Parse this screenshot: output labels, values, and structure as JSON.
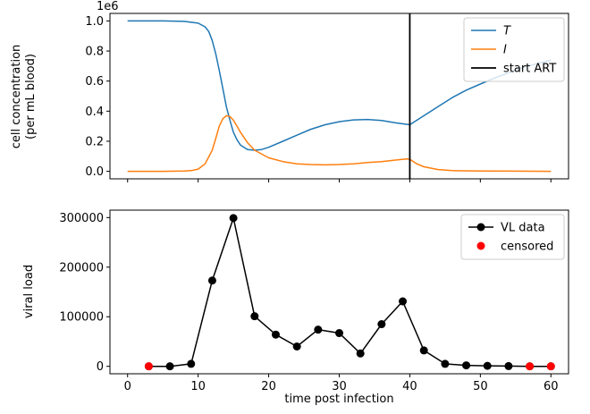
{
  "chart_data": [
    {
      "type": "line",
      "ylabel_lines": [
        "cell concentration",
        "(per mL blood)"
      ],
      "xlabel": "",
      "offset_text": "1e6",
      "xlim": [
        -2.5,
        62.5
      ],
      "ylim": [
        -0.05,
        1.05
      ],
      "x_ticks": [
        0,
        10,
        20,
        30,
        40,
        50,
        60
      ],
      "x_tick_labels_visible": false,
      "y_ticks": [
        0.0,
        0.2,
        0.4,
        0.6,
        0.8,
        1.0
      ],
      "y_tick_labels": [
        "0.0",
        "0.2",
        "0.4",
        "0.6",
        "0.8",
        "1.0"
      ],
      "legend_position": "top-right",
      "series": [
        {
          "name": "T",
          "color": "#1f77b4",
          "x": [
            0,
            5,
            8,
            10,
            11,
            11.5,
            12,
            12.5,
            13,
            13.5,
            14,
            14.5,
            15,
            15.5,
            16,
            17,
            18,
            19,
            20,
            22,
            24,
            26,
            28,
            30,
            32,
            34,
            36,
            38,
            40,
            42,
            44,
            46,
            48,
            50,
            52,
            54,
            56,
            58,
            60
          ],
          "y": [
            1.0,
            1.0,
            0.997,
            0.985,
            0.96,
            0.93,
            0.87,
            0.78,
            0.67,
            0.55,
            0.43,
            0.34,
            0.26,
            0.21,
            0.175,
            0.145,
            0.14,
            0.145,
            0.16,
            0.2,
            0.24,
            0.28,
            0.31,
            0.33,
            0.342,
            0.345,
            0.338,
            0.322,
            0.31,
            0.37,
            0.43,
            0.49,
            0.54,
            0.58,
            0.62,
            0.655,
            0.69,
            0.715,
            0.74
          ]
        },
        {
          "name": "I",
          "color": "#ff7f0e",
          "x": [
            0,
            5,
            8,
            9,
            10,
            11,
            12,
            12.5,
            13,
            13.5,
            14,
            14.5,
            15,
            15.5,
            16,
            17,
            18,
            20,
            22,
            24,
            26,
            28,
            30,
            32,
            34,
            36,
            38,
            39.5,
            40,
            41,
            42,
            44,
            46,
            50,
            55,
            60
          ],
          "y": [
            0.0,
            0.0,
            0.002,
            0.005,
            0.015,
            0.05,
            0.14,
            0.22,
            0.3,
            0.35,
            0.37,
            0.365,
            0.34,
            0.3,
            0.26,
            0.19,
            0.14,
            0.09,
            0.065,
            0.05,
            0.045,
            0.043,
            0.045,
            0.05,
            0.058,
            0.065,
            0.075,
            0.082,
            0.08,
            0.05,
            0.03,
            0.012,
            0.005,
            0.002,
            0.001,
            0.0
          ]
        }
      ],
      "vline": {
        "x": 40,
        "name": "start ART",
        "color": "#000000"
      }
    },
    {
      "type": "line",
      "xlabel": "time post infection",
      "ylabel": "viral load",
      "xlim": [
        -2.5,
        62.5
      ],
      "ylim": [
        -15000,
        315000
      ],
      "x_ticks": [
        0,
        10,
        20,
        30,
        40,
        50,
        60
      ],
      "x_tick_labels": [
        "0",
        "10",
        "20",
        "30",
        "40",
        "50",
        "60"
      ],
      "y_ticks": [
        0,
        100000,
        200000,
        300000
      ],
      "y_tick_labels": [
        "0",
        "100000",
        "200000",
        "300000"
      ],
      "legend_position": "top-right",
      "series": [
        {
          "name": "VL data",
          "color": "#000000",
          "marker": "circle",
          "x": [
            3,
            6,
            9,
            12,
            15,
            18,
            21,
            24,
            27,
            30,
            33,
            36,
            39,
            42,
            45,
            48,
            51,
            54,
            57,
            60
          ],
          "y": [
            0,
            0,
            5000,
            173000,
            299000,
            101000,
            64000,
            40000,
            74000,
            67000,
            26000,
            85000,
            131000,
            32000,
            5000,
            2000,
            1000,
            500,
            0,
            0
          ]
        },
        {
          "name": "censored",
          "color": "#ff0000",
          "marker": "circle",
          "type": "scatter",
          "x": [
            3,
            57,
            60
          ],
          "y": [
            0,
            0,
            0
          ]
        }
      ]
    }
  ]
}
